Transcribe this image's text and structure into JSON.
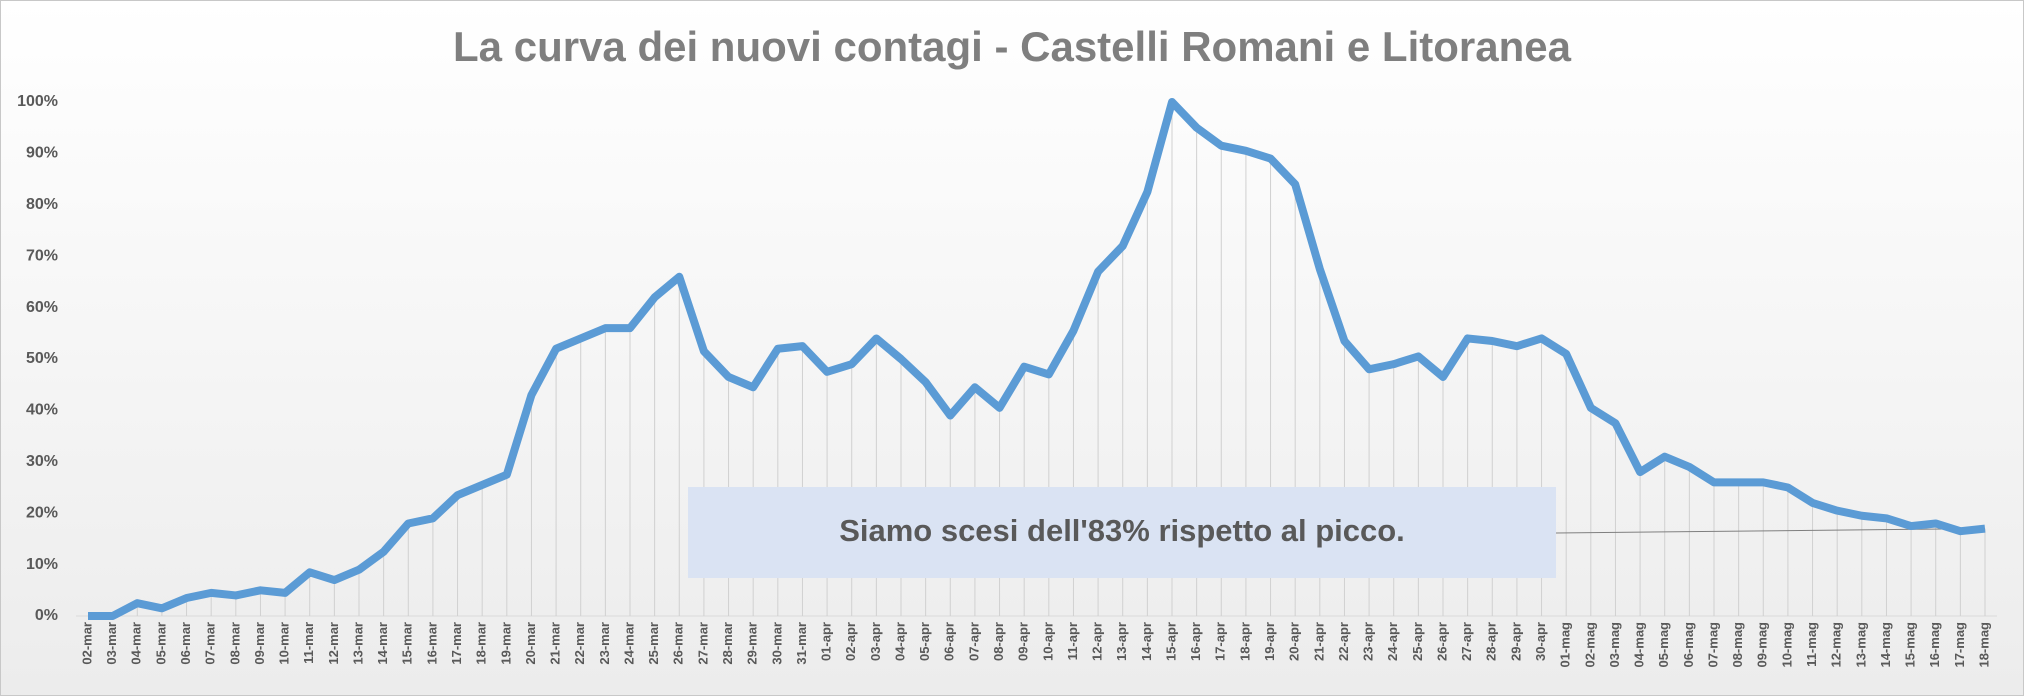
{
  "chart_data": {
    "type": "line",
    "title": "La curva dei nuovi contagi - Castelli Romani e Litoranea",
    "categories": [
      "02-mar",
      "03-mar",
      "04-mar",
      "05-mar",
      "06-mar",
      "07-mar",
      "08-mar",
      "09-mar",
      "10-mar",
      "11-mar",
      "12-mar",
      "13-mar",
      "14-mar",
      "15-mar",
      "16-mar",
      "17-mar",
      "18-mar",
      "19-mar",
      "20-mar",
      "21-mar",
      "22-mar",
      "23-mar",
      "24-mar",
      "25-mar",
      "26-mar",
      "27-mar",
      "28-mar",
      "29-mar",
      "30-mar",
      "31-mar",
      "01-apr",
      "02-apr",
      "03-apr",
      "04-apr",
      "05-apr",
      "06-apr",
      "07-apr",
      "08-apr",
      "09-apr",
      "10-apr",
      "11-apr",
      "12-apr",
      "13-apr",
      "14-apr",
      "15-apr",
      "16-apr",
      "17-apr",
      "18-apr",
      "19-apr",
      "20-apr",
      "21-apr",
      "22-apr",
      "23-apr",
      "24-apr",
      "25-apr",
      "26-apr",
      "27-apr",
      "28-apr",
      "29-apr",
      "30-apr",
      "01-mag",
      "02-mag",
      "03-mag",
      "04-mag",
      "05-mag",
      "06-mag",
      "07-mag",
      "08-mag",
      "09-mag",
      "10-mag",
      "11-mag",
      "12-mag",
      "13-mag",
      "14-mag",
      "15-mag",
      "16-mag",
      "17-mag",
      "18-mag"
    ],
    "values": [
      0,
      0,
      2.5,
      1.5,
      3.5,
      4.5,
      4,
      5,
      4.5,
      8.5,
      7,
      9,
      12.5,
      18,
      19,
      23.5,
      25.5,
      27.5,
      43,
      52,
      54,
      56,
      56,
      62,
      66,
      51.5,
      46.5,
      44.5,
      52,
      52.5,
      47.5,
      49,
      54,
      50,
      45.5,
      39,
      44.5,
      40.5,
      48.5,
      47,
      55.5,
      67,
      72,
      82.5,
      100,
      95,
      91.5,
      90.5,
      89,
      84,
      67.5,
      53.5,
      48,
      49,
      50.5,
      46.5,
      54,
      53.5,
      52.5,
      54,
      51,
      40.5,
      37.5,
      28,
      31,
      29,
      26,
      26,
      26,
      25,
      22,
      20.5,
      19.5,
      19,
      17.5,
      18,
      16.5,
      17
    ],
    "color": "#5b9bd5",
    "ylim": [
      0,
      100
    ],
    "yticks": [
      {
        "value": 0,
        "label": "0%"
      },
      {
        "value": 10,
        "label": "10%"
      },
      {
        "value": 20,
        "label": "20%"
      },
      {
        "value": 30,
        "label": "30%"
      },
      {
        "value": 40,
        "label": "40%"
      },
      {
        "value": 50,
        "label": "50%"
      },
      {
        "value": 60,
        "label": "60%"
      },
      {
        "value": 70,
        "label": "70%"
      },
      {
        "value": 80,
        "label": "80%"
      },
      {
        "value": 90,
        "label": "90%"
      },
      {
        "value": 100,
        "label": "100%"
      }
    ],
    "annotation": "Siamo scesi dell'83% rispetto al picco."
  }
}
